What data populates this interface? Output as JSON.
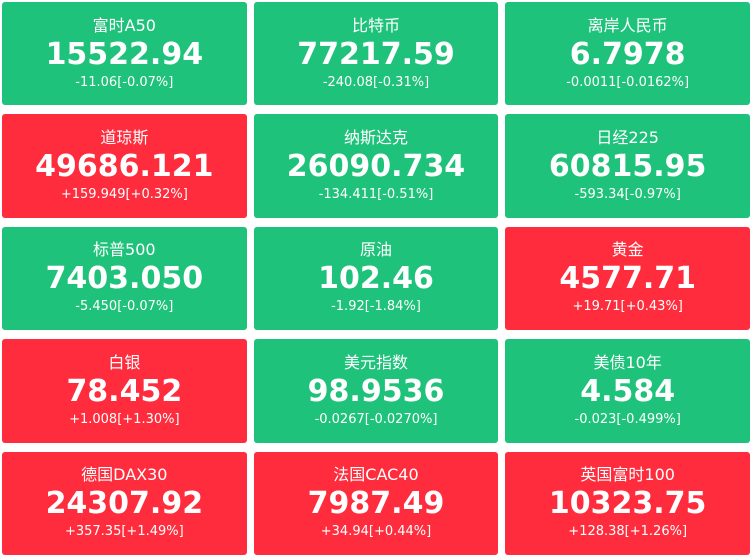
{
  "tiles": [
    {
      "name": "富时A50",
      "value": "15522.94",
      "change": "-11.06[-0.07%]",
      "color": "#1fc27b"
    },
    {
      "name": "比特币",
      "value": "77217.59",
      "change": "-240.08[-0.31%]",
      "color": "#1fc27b"
    },
    {
      "name": "离岸人民币",
      "value": "6.7978",
      "change": "-0.0011[-0.0162%]",
      "color": "#1fc27b"
    },
    {
      "name": "道琼斯",
      "value": "49686.121",
      "change": "+159.949[+0.32%]",
      "color": "#fe2c3c"
    },
    {
      "name": "纳斯达克",
      "value": "26090.734",
      "change": "-134.411[-0.51%]",
      "color": "#1fc27b"
    },
    {
      "name": "日经225",
      "value": "60815.95",
      "change": "-593.34[-0.97%]",
      "color": "#1fc27b"
    },
    {
      "name": "标普500",
      "value": "7403.050",
      "change": "-5.450[-0.07%]",
      "color": "#1fc27b"
    },
    {
      "name": "原油",
      "value": "102.46",
      "change": "-1.92[-1.84%]",
      "color": "#1fc27b"
    },
    {
      "name": "黄金",
      "value": "4577.71",
      "change": "+19.71[+0.43%]",
      "color": "#fe2c3c"
    },
    {
      "name": "白银",
      "value": "78.452",
      "change": "+1.008[+1.30%]",
      "color": "#fe2c3c"
    },
    {
      "name": "美元指数",
      "value": "98.9536",
      "change": "-0.0267[-0.0270%]",
      "color": "#1fc27b"
    },
    {
      "name": "美债10年",
      "value": "4.584",
      "change": "-0.023[-0.499%]",
      "color": "#1fc27b"
    },
    {
      "name": "德国DAX30",
      "value": "24307.92",
      "change": "+357.35[+1.49%]",
      "color": "#fe2c3c"
    },
    {
      "name": "法国CAC40",
      "value": "7987.49",
      "change": "+34.94[+0.44%]",
      "color": "#fe2c3c"
    },
    {
      "name": "英国富时100",
      "value": "10323.75",
      "change": "+128.38[+1.26%]",
      "color": "#fe2c3c"
    }
  ]
}
